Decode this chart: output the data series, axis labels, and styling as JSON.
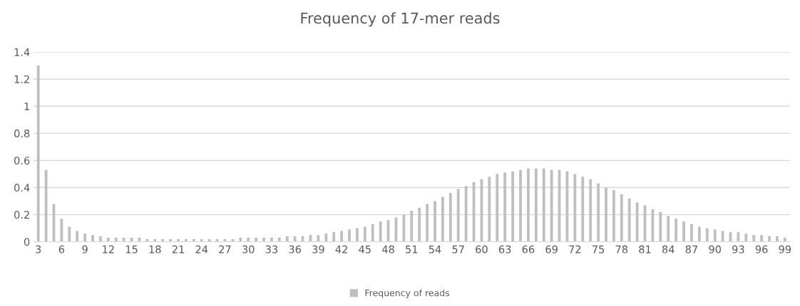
{
  "chart_data": {
    "type": "bar",
    "title": "Frequency of 17-mer reads",
    "categories": [
      "3",
      null,
      null,
      "6",
      null,
      null,
      "9",
      null,
      null,
      "12",
      null,
      null,
      "15",
      null,
      null,
      "18",
      null,
      null,
      "21",
      null,
      null,
      "24",
      null,
      null,
      "27",
      null,
      null,
      "30",
      null,
      null,
      "33",
      null,
      null,
      "36",
      null,
      null,
      "39",
      null,
      null,
      "42",
      null,
      null,
      "45",
      null,
      null,
      "48",
      null,
      null,
      "51",
      null,
      null,
      "54",
      null,
      null,
      "57",
      null,
      null,
      "60",
      null,
      null,
      "63",
      null,
      null,
      "66",
      null,
      null,
      "69",
      null,
      null,
      "72",
      null,
      null,
      "75",
      null,
      null,
      "78",
      null,
      null,
      "81",
      null,
      null,
      "84",
      null,
      null,
      "87",
      null,
      null,
      "90",
      null,
      null,
      "93",
      null,
      null,
      "96",
      null,
      null,
      "99"
    ],
    "series": [
      {
        "name": "Frequency of reads",
        "color": "#bfbfbf",
        "values": [
          1.3,
          0.53,
          0.28,
          0.17,
          0.11,
          0.08,
          0.06,
          0.05,
          0.04,
          0.03,
          0.03,
          0.03,
          0.03,
          0.03,
          0.02,
          0.02,
          0.02,
          0.02,
          0.02,
          0.02,
          0.02,
          0.02,
          0.02,
          0.02,
          0.02,
          0.02,
          0.03,
          0.03,
          0.03,
          0.03,
          0.03,
          0.03,
          0.04,
          0.04,
          0.04,
          0.05,
          0.05,
          0.06,
          0.07,
          0.08,
          0.09,
          0.1,
          0.11,
          0.13,
          0.15,
          0.16,
          0.18,
          0.2,
          0.23,
          0.25,
          0.28,
          0.3,
          0.33,
          0.36,
          0.39,
          0.41,
          0.44,
          0.46,
          0.48,
          0.5,
          0.51,
          0.52,
          0.53,
          0.54,
          0.54,
          0.54,
          0.53,
          0.53,
          0.52,
          0.5,
          0.48,
          0.46,
          0.43,
          0.4,
          0.38,
          0.35,
          0.32,
          0.29,
          0.27,
          0.24,
          0.22,
          0.19,
          0.17,
          0.15,
          0.13,
          0.11,
          0.1,
          0.09,
          0.08,
          0.07,
          0.07,
          0.06,
          0.05,
          0.05,
          0.04,
          0.04,
          0.03
        ]
      }
    ],
    "ylim": [
      0,
      1.4
    ],
    "yticks": [
      0,
      0.2,
      0.4,
      0.6,
      0.8,
      1,
      1.2,
      1.4
    ],
    "grid": "y",
    "legend": "bottom"
  }
}
